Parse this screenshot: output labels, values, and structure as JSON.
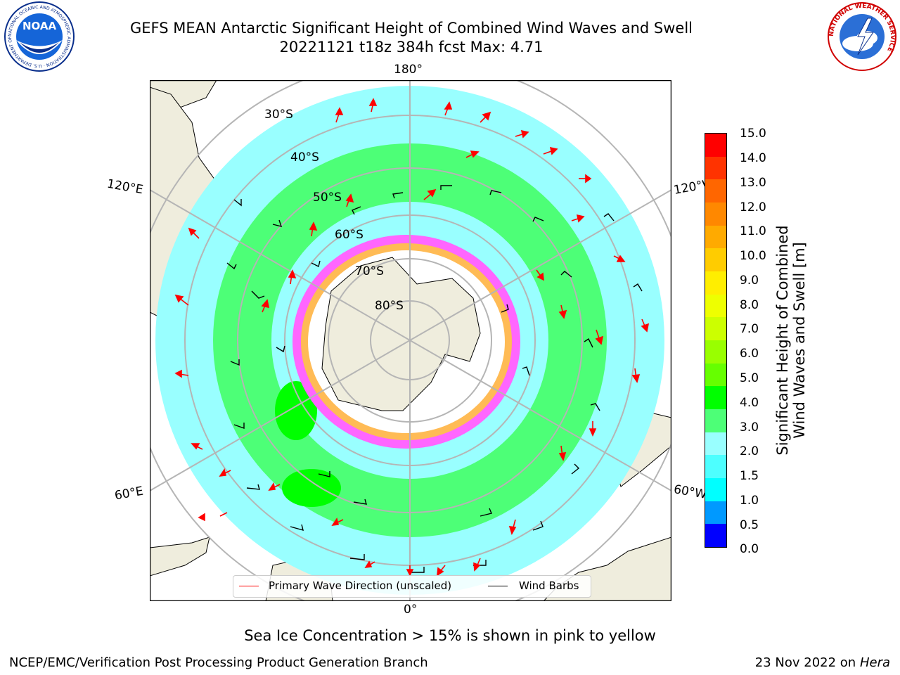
{
  "title": {
    "line1": "GEFS MEAN Antarctic Significant Height of Combined Wind Waves and Swell",
    "line2": "20221121 t18z 384h fcst   Max: 4.71"
  },
  "logos": {
    "noaa_text": "NOAA",
    "noaa_ring": "NATIONAL OCEANIC AND ATMOSPHERIC ADMINISTRATION · U.S. DEPARTMENT OF COMMERCE",
    "nws_ring": "NATIONAL WEATHER SERVICE"
  },
  "map": {
    "longitude_labels": {
      "top": "180°",
      "bottom": "0°",
      "upper_left": "120°E",
      "upper_right": "120°W",
      "lower_left": "60°E",
      "lower_right": "60°W"
    },
    "latitude_labels": [
      "30°S",
      "40°S",
      "50°S",
      "60°S",
      "70°S",
      "80°S"
    ],
    "legend": {
      "wave_direction": "Primary Wave Direction (unscaled)",
      "wind_barbs": "Wind Barbs"
    },
    "colors": {
      "land": "#efeddd",
      "ice_core": "#ffffff",
      "ice_edge_pink": "#ff66ff",
      "ice_edge_yellow": "#ffbb55",
      "arrow": "#ff0000",
      "barb": "#000000"
    }
  },
  "colorbar": {
    "label_line1": "Significant Height of Combined",
    "label_line2": "Wind Waves and Swell [m]",
    "ticks": [
      "15.0",
      "14.0",
      "13.0",
      "12.0",
      "11.0",
      "10.0",
      "9.0",
      "8.0",
      "7.0",
      "6.0",
      "5.0",
      "4.0",
      "3.0",
      "2.0",
      "1.5",
      "1.0",
      "0.5",
      "0.0"
    ],
    "colors": [
      "#ff0000",
      "#ff3300",
      "#ff6600",
      "#ff8800",
      "#ffaa00",
      "#ffcc00",
      "#ffee00",
      "#eeff00",
      "#ccff00",
      "#99ff00",
      "#66ff00",
      "#00ff00",
      "#4dff77",
      "#99ffff",
      "#4dffff",
      "#00ffff",
      "#0099ff",
      "#0044ff",
      "#0000ff"
    ]
  },
  "note": "Sea Ice Concentration > 15% is shown in pink to yellow",
  "footer": {
    "left": "NCEP/EMC/Verification Post Processing Product Generation Branch",
    "date": "23 Nov 2022 on",
    "host": "Hera"
  }
}
